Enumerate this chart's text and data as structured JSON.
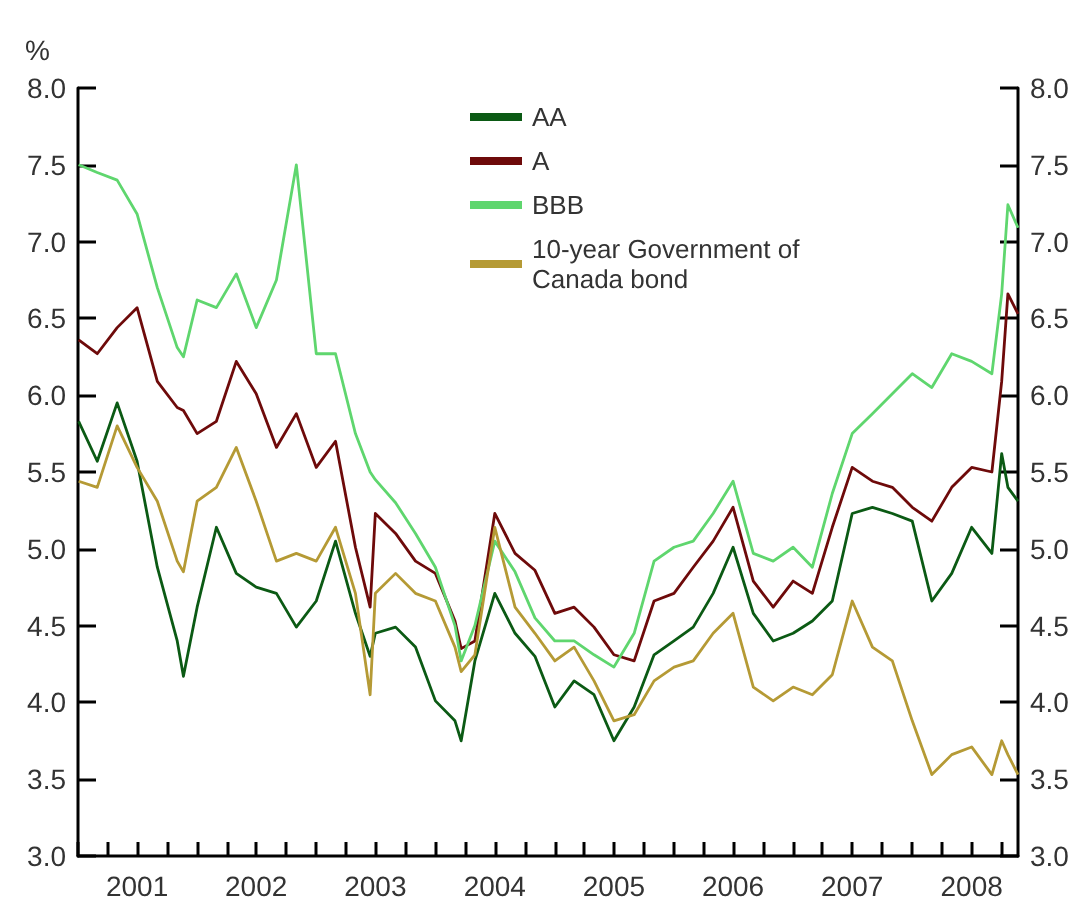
{
  "chart_data": {
    "type": "line",
    "ylabel": "%",
    "legend": "top",
    "x": [
      "2001-01-03",
      "2001-03-01",
      "2001-05-01",
      "2001-07-01",
      "2001-09-01",
      "2001-11-01",
      "2001-11-20",
      "2002-01-01",
      "2002-03-01",
      "2002-05-01",
      "2002-07-01",
      "2002-09-01",
      "2002-11-01",
      "2003-01-01",
      "2003-03-01",
      "2003-05-01",
      "2003-06-15",
      "2003-07-01",
      "2003-09-01",
      "2003-11-01",
      "2004-01-01",
      "2004-03-01",
      "2004-03-20",
      "2004-05-01",
      "2004-07-01",
      "2004-09-01",
      "2004-11-01",
      "2005-01-01",
      "2005-03-01",
      "2005-05-01",
      "2005-07-01",
      "2005-09-01",
      "2005-11-01",
      "2006-01-01",
      "2006-03-01",
      "2006-05-01",
      "2006-07-01",
      "2006-09-01",
      "2006-11-01",
      "2007-01-01",
      "2007-03-01",
      "2007-05-01",
      "2007-07-01",
      "2007-09-01",
      "2007-11-01",
      "2008-01-01",
      "2008-03-01",
      "2008-05-01",
      "2008-07-01",
      "2008-09-01",
      "2008-10-01",
      "2008-10-20",
      "2008-11-20"
    ],
    "series": [
      {
        "name": "AA",
        "color": "#0b5a14",
        "values": [
          5.83,
          5.57,
          5.95,
          5.57,
          4.88,
          4.4,
          4.17,
          4.62,
          5.14,
          4.84,
          4.75,
          4.71,
          4.49,
          4.66,
          5.05,
          4.58,
          4.3,
          4.45,
          4.49,
          4.36,
          4.01,
          3.88,
          3.75,
          4.27,
          4.71,
          4.45,
          4.3,
          3.97,
          4.14,
          4.05,
          3.75,
          3.97,
          4.31,
          4.4,
          4.49,
          4.71,
          5.01,
          4.58,
          4.4,
          4.45,
          4.53,
          4.66,
          5.23,
          5.27,
          5.23,
          5.18,
          4.66,
          4.84,
          5.14,
          4.97,
          5.62,
          5.4,
          5.31
        ]
      },
      {
        "name": "A",
        "color": "#6e0a0a",
        "values": [
          6.36,
          6.27,
          6.44,
          6.57,
          6.09,
          5.92,
          5.9,
          5.75,
          5.83,
          6.22,
          6.01,
          5.66,
          5.88,
          5.53,
          5.7,
          5.01,
          4.62,
          5.23,
          5.1,
          4.92,
          4.84,
          4.53,
          4.35,
          4.4,
          5.23,
          4.97,
          4.86,
          4.58,
          4.62,
          4.49,
          4.31,
          4.27,
          4.66,
          4.71,
          4.88,
          5.05,
          5.27,
          4.79,
          4.62,
          4.79,
          4.71,
          5.14,
          5.53,
          5.44,
          5.4,
          5.27,
          5.18,
          5.4,
          5.53,
          5.5,
          6.09,
          6.66,
          6.53
        ]
      },
      {
        "name": "BBB",
        "color": "#5fd66e",
        "values": [
          7.5,
          7.45,
          7.4,
          7.18,
          6.7,
          6.31,
          6.25,
          6.62,
          6.57,
          6.79,
          6.44,
          6.75,
          7.5,
          6.27,
          6.27,
          5.75,
          5.5,
          5.45,
          5.3,
          5.1,
          4.88,
          4.5,
          4.27,
          4.5,
          5.05,
          4.85,
          4.55,
          4.4,
          4.4,
          4.31,
          4.23,
          4.45,
          4.92,
          5.01,
          5.05,
          5.23,
          5.44,
          4.97,
          4.92,
          5.01,
          4.88,
          5.36,
          5.75,
          5.88,
          6.01,
          6.14,
          6.05,
          6.27,
          6.22,
          6.14,
          6.66,
          7.24,
          7.09
        ]
      },
      {
        "name": "10-year Government of Canada bond",
        "color": "#b59a35",
        "values": [
          5.44,
          5.4,
          5.8,
          5.53,
          5.31,
          4.92,
          4.85,
          5.31,
          5.4,
          5.66,
          5.31,
          4.92,
          4.97,
          4.92,
          5.14,
          4.71,
          4.05,
          4.71,
          4.84,
          4.71,
          4.66,
          4.36,
          4.2,
          4.31,
          5.14,
          4.62,
          4.45,
          4.27,
          4.36,
          4.14,
          3.88,
          3.92,
          4.14,
          4.23,
          4.27,
          4.45,
          4.58,
          4.1,
          4.01,
          4.1,
          4.05,
          4.18,
          4.66,
          4.36,
          4.27,
          3.88,
          3.53,
          3.66,
          3.71,
          3.53,
          3.75,
          3.66,
          3.53
        ]
      }
    ],
    "xlim": [
      "2001-01-01",
      "2008-11-20"
    ],
    "xticks": [
      {
        "value": "2001-01-01",
        "label": null
      },
      {
        "value": "2001-04-01",
        "label": null
      },
      {
        "value": "2001-07-01",
        "label": "2001"
      },
      {
        "value": "2001-10-01",
        "label": null
      },
      {
        "value": "2002-01-01",
        "label": null
      },
      {
        "value": "2002-04-01",
        "label": null
      },
      {
        "value": "2002-07-01",
        "label": "2002"
      },
      {
        "value": "2002-10-01",
        "label": null
      },
      {
        "value": "2003-01-01",
        "label": null
      },
      {
        "value": "2003-04-01",
        "label": null
      },
      {
        "value": "2003-07-01",
        "label": "2003"
      },
      {
        "value": "2003-10-01",
        "label": null
      },
      {
        "value": "2004-01-01",
        "label": null
      },
      {
        "value": "2004-04-01",
        "label": null
      },
      {
        "value": "2004-07-01",
        "label": "2004"
      },
      {
        "value": "2004-10-01",
        "label": null
      },
      {
        "value": "2005-01-01",
        "label": null
      },
      {
        "value": "2005-04-01",
        "label": null
      },
      {
        "value": "2005-07-01",
        "label": "2005"
      },
      {
        "value": "2005-10-01",
        "label": null
      },
      {
        "value": "2006-01-01",
        "label": null
      },
      {
        "value": "2006-04-01",
        "label": null
      },
      {
        "value": "2006-07-01",
        "label": "2006"
      },
      {
        "value": "2006-10-01",
        "label": null
      },
      {
        "value": "2007-01-01",
        "label": null
      },
      {
        "value": "2007-04-01",
        "label": null
      },
      {
        "value": "2007-07-01",
        "label": "2007"
      },
      {
        "value": "2007-10-01",
        "label": null
      },
      {
        "value": "2008-01-01",
        "label": null
      },
      {
        "value": "2008-04-01",
        "label": null
      },
      {
        "value": "2008-07-01",
        "label": "2008"
      },
      {
        "value": "2008-10-01",
        "label": null
      }
    ],
    "ylim": [
      3,
      8
    ],
    "yticks": [
      {
        "value": 3,
        "label": "3.0"
      },
      {
        "value": 3.5,
        "label": "3.5"
      },
      {
        "value": 4,
        "label": "4.0"
      },
      {
        "value": 4.5,
        "label": "4.5"
      },
      {
        "value": 5,
        "label": "5.0"
      },
      {
        "value": 5.5,
        "label": "5.5"
      },
      {
        "value": 6,
        "label": "6.0"
      },
      {
        "value": 6.5,
        "label": "6.5"
      },
      {
        "value": 7,
        "label": "7.0"
      },
      {
        "value": 7.5,
        "label": "7.5"
      },
      {
        "value": 8,
        "label": "8.0"
      }
    ],
    "y2lim": [
      3,
      8
    ],
    "y2ticks": [
      {
        "value": 3,
        "label": "3.0"
      },
      {
        "value": 3.5,
        "label": "3.5"
      },
      {
        "value": 4,
        "label": "4.0"
      },
      {
        "value": 4.5,
        "label": "4.5"
      },
      {
        "value": 5,
        "label": "5.0"
      },
      {
        "value": 5.5,
        "label": "5.5"
      },
      {
        "value": 6,
        "label": "6.0"
      },
      {
        "value": 6.5,
        "label": "6.5"
      },
      {
        "value": 7,
        "label": "7.0"
      },
      {
        "value": 7.5,
        "label": "7.5"
      },
      {
        "value": 8,
        "label": "8.0"
      }
    ]
  }
}
